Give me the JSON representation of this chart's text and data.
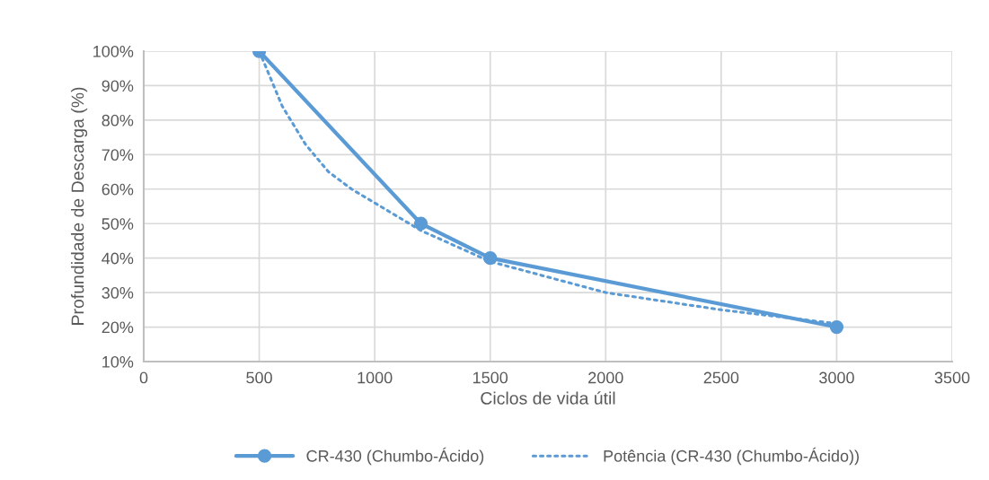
{
  "chart_data": {
    "type": "line",
    "xlabel": "Ciclos de vida útil",
    "ylabel": "Profundidade de Descarga (%)",
    "xlim": [
      0,
      3500
    ],
    "xticks": [
      0,
      500,
      1000,
      1500,
      2000,
      2500,
      3000,
      3500
    ],
    "ylim": [
      10,
      100
    ],
    "yticks": [
      {
        "value": 10,
        "label": "10%"
      },
      {
        "value": 20,
        "label": "20%"
      },
      {
        "value": 30,
        "label": "30%"
      },
      {
        "value": 40,
        "label": "40%"
      },
      {
        "value": 50,
        "label": "50%"
      },
      {
        "value": 60,
        "label": "60%"
      },
      {
        "value": 70,
        "label": "70%"
      },
      {
        "value": 80,
        "label": "80%"
      },
      {
        "value": 90,
        "label": "90%"
      },
      {
        "value": 100,
        "label": "100%"
      }
    ],
    "grid": true,
    "legend": "bottom",
    "series": [
      {
        "name": "CR-430 (Chumbo-Ácido)",
        "color": "#5b9bd5",
        "x": [
          500,
          1200,
          1500,
          3000
        ],
        "values": [
          100,
          50,
          40,
          20
        ],
        "marker": "circle",
        "line_style": "solid"
      },
      {
        "name": "Potência (CR-430 (Chumbo-Ácido))",
        "color": "#5b9bd5",
        "x": [
          500,
          600,
          700,
          800,
          900,
          1000,
          1200,
          1500,
          2000,
          2500,
          3000
        ],
        "values": [
          100,
          84,
          73,
          65,
          60,
          56,
          48,
          39,
          30,
          25,
          21
        ],
        "marker": "none",
        "line_style": "dotted"
      }
    ]
  }
}
